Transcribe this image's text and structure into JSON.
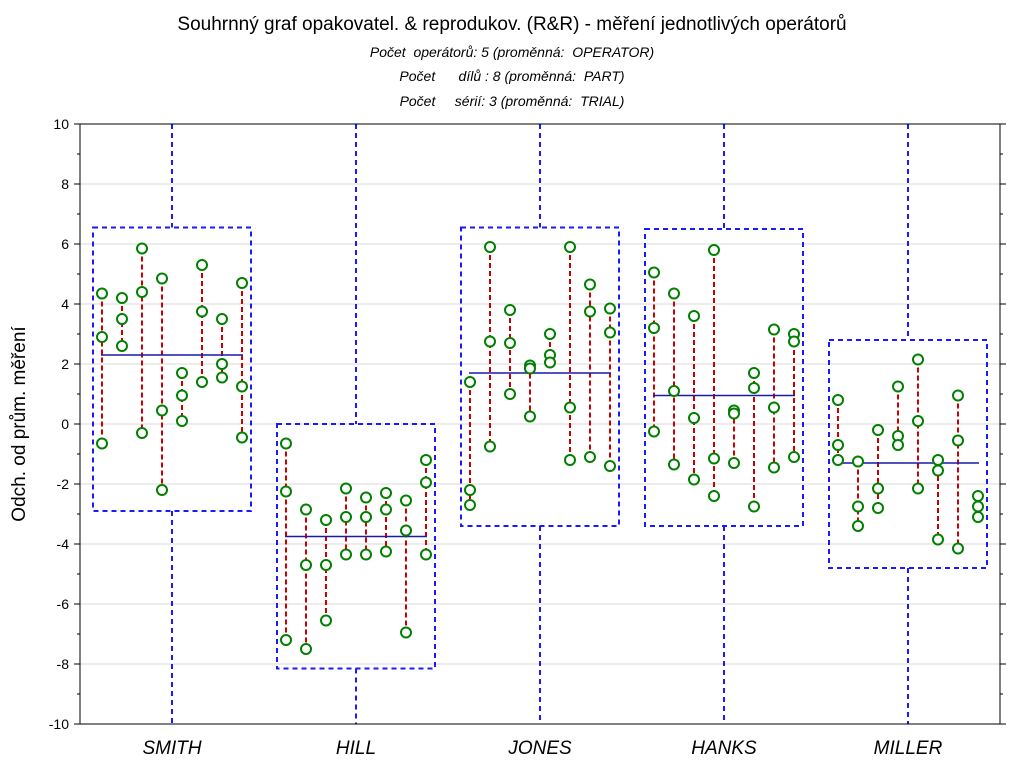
{
  "chart_data": {
    "type": "scatter",
    "title": "Souhrnný graf opakovatel. & reprodukov. (R&R) - měření jednotlivých operátorů",
    "subtitles": [
      "Počet  operátorů: 5 (proměnná:  OPERATOR)",
      "Počet      dílů : 8 (proměnná:  PART)",
      "Počet     sérií: 3 (proměnná:  TRIAL)"
    ],
    "ylabel": "Odch. od prům. měření",
    "xlabel": "",
    "ylim": [
      -10,
      10
    ],
    "yticks": [
      "10",
      "8",
      "6",
      "4",
      "2",
      "0",
      "-2",
      "-4",
      "-6",
      "-8",
      "-10"
    ],
    "grid": "horizontal",
    "operators": [
      {
        "name": "SMITH",
        "mean": 2.3,
        "box": [
          -2.9,
          6.55
        ],
        "parts": [
          [
            4.35,
            2.9,
            -0.65
          ],
          [
            4.2,
            3.5,
            2.6
          ],
          [
            5.85,
            4.4,
            -0.3
          ],
          [
            4.85,
            0.45,
            -2.2
          ],
          [
            1.7,
            0.95,
            0.1
          ],
          [
            5.3,
            3.75,
            1.4
          ],
          [
            3.5,
            2.0,
            1.55
          ],
          [
            4.7,
            1.25,
            -0.45
          ]
        ]
      },
      {
        "name": "HILL",
        "mean": -3.75,
        "box": [
          -8.15,
          0.0
        ],
        "parts": [
          [
            -0.65,
            -2.25,
            -7.2
          ],
          [
            -2.85,
            -4.7,
            -7.5
          ],
          [
            -3.2,
            -4.7,
            -6.55
          ],
          [
            -2.15,
            -3.1,
            -4.35
          ],
          [
            -2.45,
            -3.1,
            -4.35
          ],
          [
            -2.3,
            -2.85,
            -4.25
          ],
          [
            -2.55,
            -3.55,
            -6.95
          ],
          [
            -1.2,
            -1.95,
            -4.35
          ]
        ]
      },
      {
        "name": "JONES",
        "mean": 1.7,
        "box": [
          -3.4,
          6.55
        ],
        "parts": [
          [
            1.4,
            -2.2,
            -2.7
          ],
          [
            5.9,
            2.75,
            -0.75
          ],
          [
            3.8,
            2.7,
            1.0
          ],
          [
            1.95,
            1.85,
            0.25
          ],
          [
            3.0,
            2.3,
            2.05
          ],
          [
            5.9,
            0.55,
            -1.2
          ],
          [
            4.65,
            3.75,
            -1.1
          ],
          [
            3.85,
            3.05,
            -1.4
          ]
        ]
      },
      {
        "name": "HANKS",
        "mean": 0.95,
        "box": [
          -3.4,
          6.5
        ],
        "parts": [
          [
            5.05,
            3.2,
            -0.25
          ],
          [
            4.35,
            1.1,
            -1.35
          ],
          [
            3.6,
            0.2,
            -1.85
          ],
          [
            5.8,
            -1.15,
            -2.4
          ],
          [
            0.45,
            0.35,
            -1.3
          ],
          [
            1.7,
            1.2,
            -2.75
          ],
          [
            3.15,
            0.55,
            -1.45
          ],
          [
            3.0,
            2.75,
            -1.1
          ]
        ]
      },
      {
        "name": "MILLER",
        "mean": -1.3,
        "box": [
          -4.8,
          2.8
        ],
        "parts": [
          [
            0.8,
            -0.7,
            -1.2
          ],
          [
            -1.25,
            -2.75,
            -3.4
          ],
          [
            -0.2,
            -2.15,
            -2.8
          ],
          [
            1.25,
            -0.4,
            -0.7
          ],
          [
            2.15,
            0.1,
            -2.15
          ],
          [
            -1.2,
            -1.55,
            -3.85
          ],
          [
            0.95,
            -0.55,
            -4.15
          ],
          [
            -2.4,
            -2.75,
            -3.1
          ]
        ]
      }
    ],
    "colors": {
      "box": "#1a1aff",
      "mean": "#1a1aa6",
      "range": "#cc0000",
      "point": "#008000",
      "grid": "#d8d8d8",
      "axis": "#000000"
    }
  }
}
